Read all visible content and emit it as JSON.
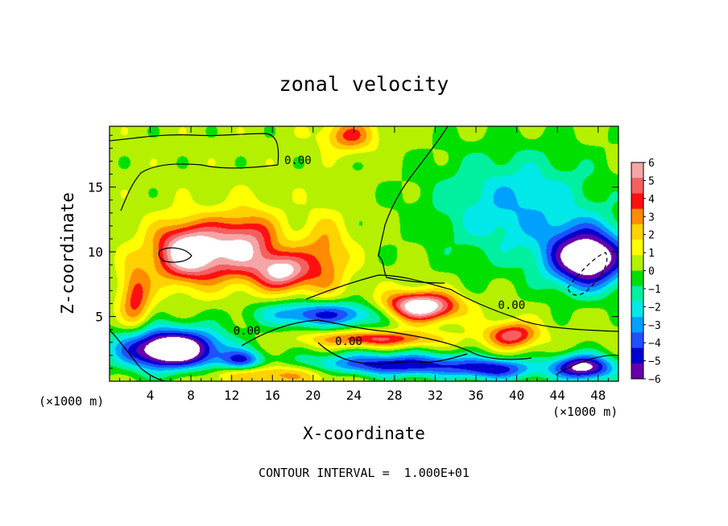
{
  "chart_data": {
    "type": "heatmap",
    "title": "zonal velocity",
    "xlabel": "X-coordinate",
    "ylabel": "Z-coordinate",
    "x_unit": "(×1000 m)",
    "z_unit": "(×1000 m)",
    "xlim": [
      0,
      50
    ],
    "zlim": [
      0,
      19.7
    ],
    "x_ticks": [
      4,
      8,
      12,
      16,
      20,
      24,
      28,
      32,
      36,
      40,
      44,
      48
    ],
    "x_tick_labels": [
      "4",
      "8",
      "12",
      "16",
      "20",
      "24",
      "28",
      "32",
      "36",
      "40",
      "44",
      "48"
    ],
    "z_ticks": [
      5,
      10,
      15
    ],
    "z_tick_labels": [
      "5",
      "10",
      "15"
    ],
    "colorbar": {
      "range": [
        -6,
        6
      ],
      "ticks": [
        6,
        5,
        4,
        3,
        2,
        1,
        0,
        -1,
        -2,
        -3,
        -4,
        -5,
        -6
      ],
      "tick_labels": [
        "6",
        "5",
        "4",
        "3",
        "2",
        "1",
        "0",
        "−1",
        "−2",
        "−3",
        "−4",
        "−5",
        "−6"
      ],
      "colors": [
        "#f4a6a6",
        "#f46060",
        "#ff1010",
        "#ff8c00",
        "#ffd200",
        "#ffff00",
        "#b4f000",
        "#00e000",
        "#00f0a0",
        "#00e8e8",
        "#00a0ff",
        "#2050ff",
        "#0000d0",
        "#6600aa"
      ]
    },
    "contour_labels": [
      {
        "text": "0.00",
        "x": 18.5,
        "z": 17.1
      },
      {
        "text": "0.00",
        "x": 13.5,
        "z": 3.9
      },
      {
        "text": "0.00",
        "x": 23.5,
        "z": 3.1
      },
      {
        "text": "0.00",
        "x": 39.5,
        "z": 5.9
      }
    ],
    "footer": "CONTOUR INTERVAL =  1.000E+01",
    "features": [
      {
        "x": 8.0,
        "z": 10.0,
        "v": 7.5,
        "sx": 3.6,
        "sz": 2.2
      },
      {
        "x": 13.5,
        "z": 10.5,
        "v": 5.0,
        "sx": 3.0,
        "sz": 2.5
      },
      {
        "x": 17.0,
        "z": 8.5,
        "v": 5.5,
        "sx": 2.5,
        "sz": 1.4
      },
      {
        "x": 21.0,
        "z": 9.5,
        "v": 2.8,
        "sx": 2.5,
        "sz": 3.0
      },
      {
        "x": 23.5,
        "z": 19.0,
        "v": 3.2,
        "sx": 2.5,
        "sz": 1.2
      },
      {
        "x": 30.5,
        "z": 5.8,
        "v": 7.5,
        "sx": 3.5,
        "sz": 1.1
      },
      {
        "x": 39.5,
        "z": 3.6,
        "v": 4.5,
        "sx": 2.5,
        "sz": 1.0
      },
      {
        "x": 26.0,
        "z": 3.3,
        "v": 4.0,
        "sx": 6.0,
        "sz": 0.6
      },
      {
        "x": 2.5,
        "z": 6.5,
        "v": 3.5,
        "sx": 1.5,
        "sz": 2.5
      },
      {
        "x": 16.0,
        "z": 0.6,
        "v": 3.0,
        "sx": 7.0,
        "sz": 0.8
      },
      {
        "x": 47.0,
        "z": 9.5,
        "v": -8.0,
        "sx": 3.8,
        "sz": 2.3
      },
      {
        "x": 40.0,
        "z": 13.5,
        "v": -3.0,
        "sx": 8.5,
        "sz": 4.5
      },
      {
        "x": 6.0,
        "z": 2.5,
        "v": -9.0,
        "sx": 5.0,
        "sz": 1.6
      },
      {
        "x": 21.0,
        "z": 5.2,
        "v": -5.0,
        "sx": 6.0,
        "sz": 1.0
      },
      {
        "x": 28.0,
        "z": 1.3,
        "v": -5.5,
        "sx": 9.0,
        "sz": 0.9
      },
      {
        "x": 38.0,
        "z": 0.9,
        "v": -4.0,
        "sx": 4.0,
        "sz": 0.8
      },
      {
        "x": 46.5,
        "z": 1.1,
        "v": -7.0,
        "sx": 3.0,
        "sz": 1.0
      },
      {
        "x": 13.0,
        "z": 1.6,
        "v": -4.0,
        "sx": 2.0,
        "sz": 0.8
      }
    ]
  }
}
